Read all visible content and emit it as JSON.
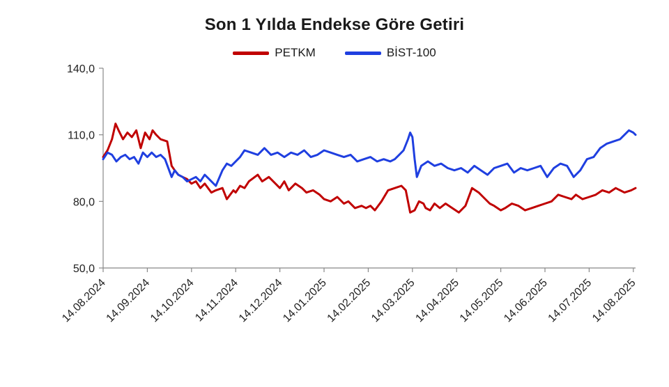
{
  "chart_data": {
    "type": "line",
    "title": "Son 1 Yılda Endekse Göre Getiri",
    "xlabel": "",
    "ylabel": "",
    "ylim": [
      50,
      140
    ],
    "y_ticks": [
      "50,0",
      "80,0",
      "110,0",
      "140,0"
    ],
    "y_tick_values": [
      50,
      80,
      110,
      140
    ],
    "x_ticks": [
      "14.08.2024",
      "14.09.2024",
      "14.10.2024",
      "14.11.2024",
      "14.12.2024",
      "14.01.2025",
      "14.02.2025",
      "14.03.2025",
      "14.04.2025",
      "14.05.2025",
      "14.06.2025",
      "14.07.2025",
      "14.08.2025"
    ],
    "x_tick_positions": [
      0,
      1,
      2,
      3,
      4,
      5,
      6,
      7,
      8,
      9,
      10,
      11,
      12
    ],
    "grid": false,
    "legend_placement": "top-center",
    "series": [
      {
        "name": "PETKM",
        "color": "#c00000",
        "x": [
          0,
          0.1,
          0.2,
          0.28,
          0.35,
          0.45,
          0.55,
          0.65,
          0.75,
          0.85,
          0.95,
          1.05,
          1.12,
          1.2,
          1.3,
          1.45,
          1.55,
          1.62,
          1.7,
          1.8,
          1.9,
          2.0,
          2.1,
          2.2,
          2.3,
          2.45,
          2.55,
          2.7,
          2.8,
          2.95,
          3.0,
          3.1,
          3.2,
          3.3,
          3.5,
          3.6,
          3.75,
          3.9,
          4.0,
          4.1,
          4.2,
          4.35,
          4.5,
          4.6,
          4.75,
          4.9,
          5.0,
          5.15,
          5.3,
          5.45,
          5.55,
          5.7,
          5.85,
          5.95,
          6.05,
          6.15,
          6.3,
          6.45,
          6.6,
          6.75,
          6.85,
          6.95,
          7.05,
          7.15,
          7.25,
          7.3,
          7.4,
          7.5,
          7.62,
          7.75,
          7.9,
          8.05,
          8.2,
          8.35,
          8.5,
          8.6,
          8.75,
          8.85,
          9.0,
          9.1,
          9.25,
          9.4,
          9.55,
          9.7,
          9.85,
          10.0,
          10.15,
          10.3,
          10.45,
          10.6,
          10.7,
          10.85,
          11.0,
          11.15,
          11.3,
          11.45,
          11.6,
          11.8,
          11.95,
          12.05
        ],
        "values": [
          100,
          103,
          108,
          115,
          112,
          108,
          111,
          109,
          112,
          104,
          111,
          108,
          112,
          110,
          108,
          107,
          96,
          94,
          92,
          91,
          90,
          88,
          89,
          86,
          88,
          84,
          85,
          86,
          81,
          85,
          84,
          87,
          86,
          89,
          92,
          89,
          91,
          88,
          86,
          89,
          85,
          88,
          86,
          84,
          85,
          83,
          81,
          80,
          82,
          79,
          80,
          77,
          78,
          77,
          78,
          76,
          80,
          85,
          86,
          87,
          85,
          75,
          76,
          80,
          79,
          77,
          76,
          79,
          77,
          79,
          77,
          75,
          78,
          86,
          84,
          82,
          79,
          78,
          76,
          77,
          79,
          78,
          76,
          77,
          78,
          79,
          80,
          83,
          82,
          81,
          83,
          81,
          82,
          83,
          85,
          84,
          86,
          84,
          85,
          86
        ]
      },
      {
        "name": "BİST-100",
        "color": "#1f3fe0",
        "x": [
          0,
          0.1,
          0.2,
          0.3,
          0.4,
          0.5,
          0.6,
          0.7,
          0.8,
          0.9,
          1.0,
          1.1,
          1.2,
          1.3,
          1.4,
          1.55,
          1.62,
          1.7,
          1.8,
          1.9,
          2.0,
          2.1,
          2.2,
          2.3,
          2.4,
          2.55,
          2.7,
          2.8,
          2.9,
          3.0,
          3.1,
          3.2,
          3.35,
          3.5,
          3.65,
          3.8,
          3.95,
          4.1,
          4.25,
          4.4,
          4.55,
          4.7,
          4.85,
          5.0,
          5.15,
          5.3,
          5.45,
          5.6,
          5.75,
          5.9,
          6.05,
          6.2,
          6.35,
          6.5,
          6.6,
          6.7,
          6.8,
          6.9,
          6.95,
          7.0,
          7.05,
          7.1,
          7.2,
          7.35,
          7.5,
          7.65,
          7.8,
          7.95,
          8.1,
          8.25,
          8.4,
          8.55,
          8.7,
          8.85,
          9.0,
          9.15,
          9.3,
          9.45,
          9.6,
          9.75,
          9.9,
          10.05,
          10.2,
          10.35,
          10.5,
          10.65,
          10.8,
          10.95,
          11.1,
          11.25,
          11.4,
          11.55,
          11.7,
          11.8,
          11.9,
          12.0,
          12.05
        ],
        "values": [
          99,
          102,
          101,
          98,
          100,
          101,
          99,
          100,
          97,
          102,
          100,
          102,
          100,
          101,
          99,
          91,
          94,
          92,
          91,
          89,
          90,
          91,
          89,
          92,
          90,
          87,
          94,
          97,
          96,
          98,
          100,
          103,
          102,
          101,
          104,
          101,
          102,
          100,
          102,
          101,
          103,
          100,
          101,
          103,
          102,
          101,
          100,
          101,
          98,
          99,
          100,
          98,
          99,
          98,
          99,
          101,
          103,
          108,
          111,
          109,
          99,
          91,
          96,
          98,
          96,
          97,
          95,
          94,
          95,
          93,
          96,
          94,
          92,
          95,
          96,
          97,
          93,
          95,
          94,
          95,
          96,
          91,
          95,
          97,
          96,
          91,
          94,
          99,
          100,
          104,
          106,
          107,
          108,
          110,
          112,
          111,
          110
        ]
      }
    ]
  }
}
